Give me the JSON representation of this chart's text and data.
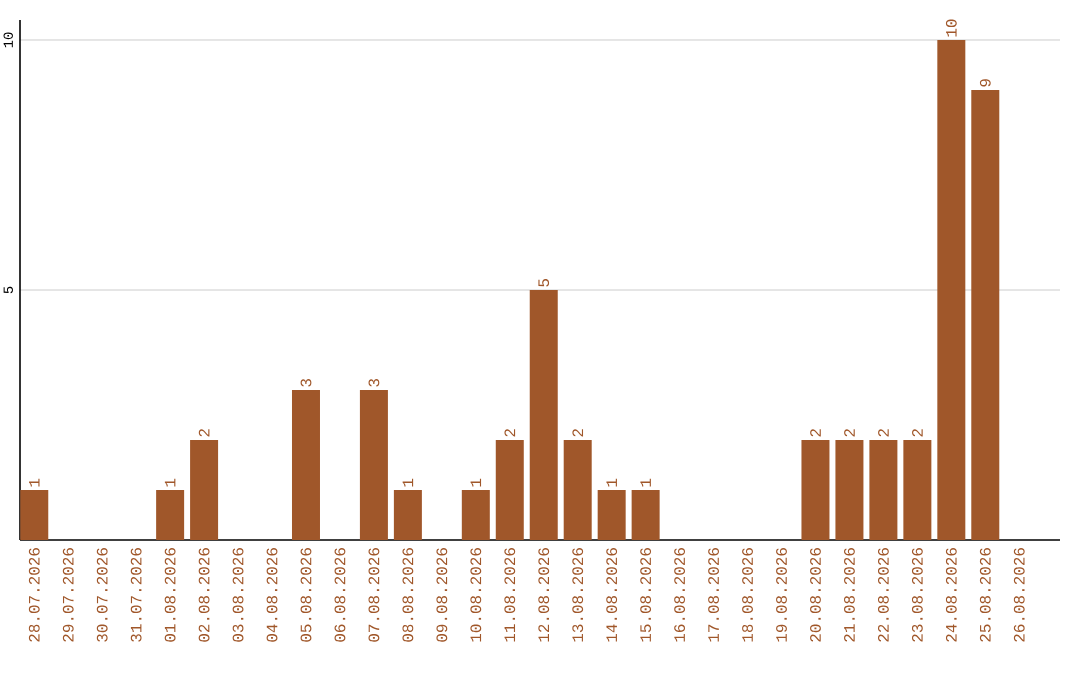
{
  "chart_data": {
    "type": "bar",
    "categories": [
      "28.07.2026",
      "29.07.2026",
      "30.07.2026",
      "31.07.2026",
      "01.08.2026",
      "02.08.2026",
      "03.08.2026",
      "04.08.2026",
      "05.08.2026",
      "06.08.2026",
      "07.08.2026",
      "08.08.2026",
      "09.08.2026",
      "10.08.2026",
      "11.08.2026",
      "12.08.2026",
      "13.08.2026",
      "14.08.2026",
      "15.08.2026",
      "16.08.2026",
      "17.08.2026",
      "18.08.2026",
      "19.08.2026",
      "20.08.2026",
      "21.08.2026",
      "22.08.2026",
      "23.08.2026",
      "24.08.2026",
      "25.08.2026",
      "26.08.2026"
    ],
    "values": [
      1,
      0,
      0,
      0,
      1,
      2,
      0,
      0,
      3,
      0,
      3,
      1,
      0,
      1,
      2,
      5,
      2,
      1,
      1,
      0,
      0,
      0,
      0,
      2,
      2,
      2,
      2,
      10,
      9,
      0
    ],
    "value_labels": [
      "1",
      null,
      null,
      null,
      "1",
      "2",
      null,
      null,
      "3",
      null,
      "3",
      "1",
      null,
      "1",
      "2",
      "5",
      "2",
      "1",
      "1",
      null,
      null,
      null,
      null,
      "2",
      "2",
      "2",
      "2",
      "10",
      "9",
      null
    ],
    "color": "#a0572a",
    "ylim": [
      0,
      10.4
    ],
    "yticks": [
      5,
      10
    ],
    "grid": "y"
  }
}
